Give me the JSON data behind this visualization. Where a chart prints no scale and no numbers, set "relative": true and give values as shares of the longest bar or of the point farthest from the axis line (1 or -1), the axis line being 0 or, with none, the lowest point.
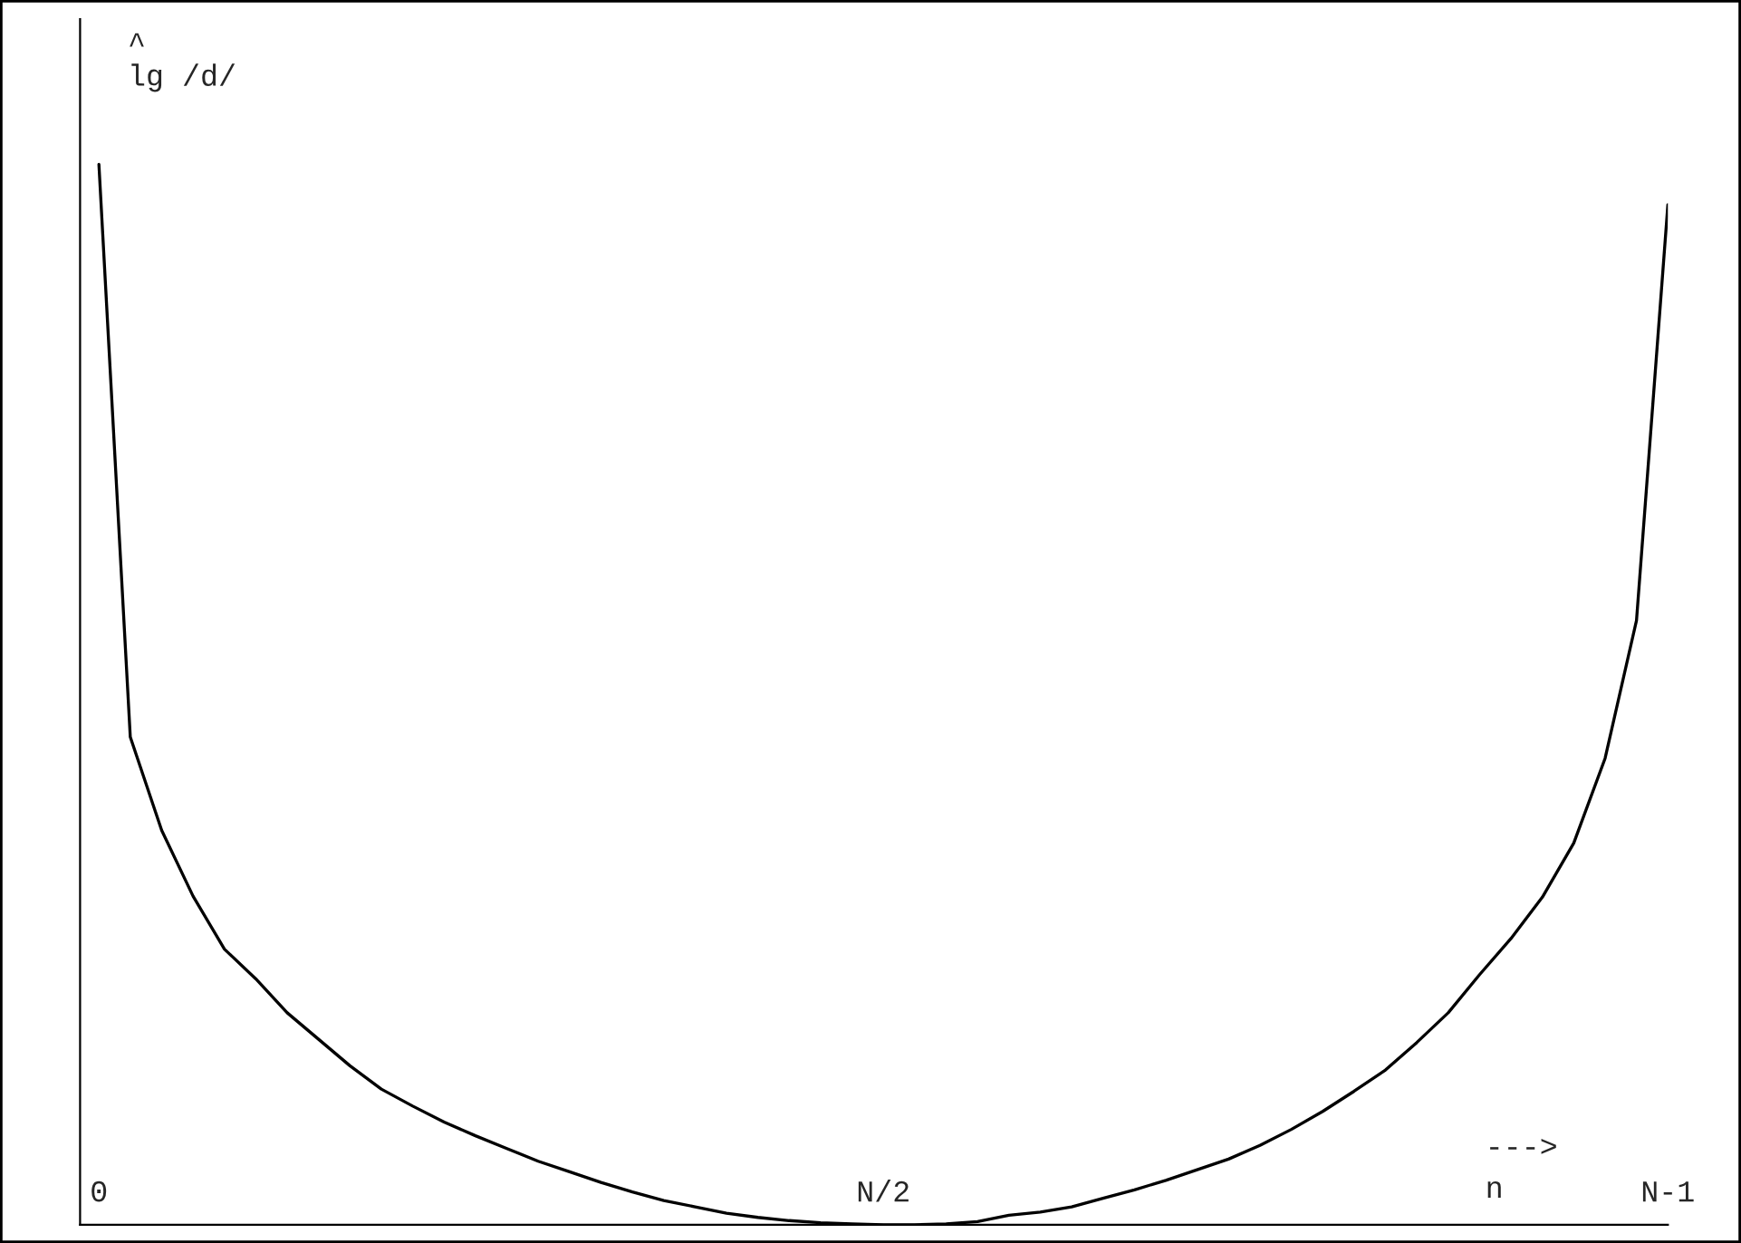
{
  "chart_data": {
    "type": "line",
    "relative": true,
    "ylabel": "^\nlg /d/",
    "xlabel": "--->\nn",
    "categories": [
      "0",
      null,
      null,
      null,
      null,
      null,
      null,
      null,
      null,
      null,
      null,
      null,
      null,
      null,
      null,
      null,
      null,
      null,
      null,
      null,
      null,
      null,
      null,
      null,
      null,
      "N/2",
      null,
      null,
      null,
      null,
      null,
      null,
      null,
      null,
      null,
      null,
      null,
      null,
      null,
      null,
      null,
      null,
      null,
      null,
      null,
      null,
      null,
      null,
      null,
      null,
      "N-1"
    ],
    "grid": false,
    "legend": false,
    "marker": "none",
    "line_style": "solid",
    "series": [
      {
        "color": "#000000",
        "values": [
          1.0,
          0.46,
          0.372,
          0.31,
          0.26,
          0.232,
          0.2,
          0.175,
          0.15,
          0.128,
          0.112,
          0.097,
          0.084,
          0.072,
          0.06,
          0.05,
          0.04,
          0.031,
          0.023,
          0.017,
          0.011,
          0.007,
          0.004,
          0.002,
          0.001,
          0,
          0,
          0.001,
          0.003,
          0.009,
          0.012,
          0.017,
          0.025,
          0.033,
          0.042,
          0.052,
          0.062,
          0.075,
          0.09,
          0.107,
          0.126,
          0.146,
          0.172,
          0.2,
          0.236,
          0.27,
          0.309,
          0.36,
          0.44,
          0.57,
          0.962
        ]
      }
    ]
  }
}
